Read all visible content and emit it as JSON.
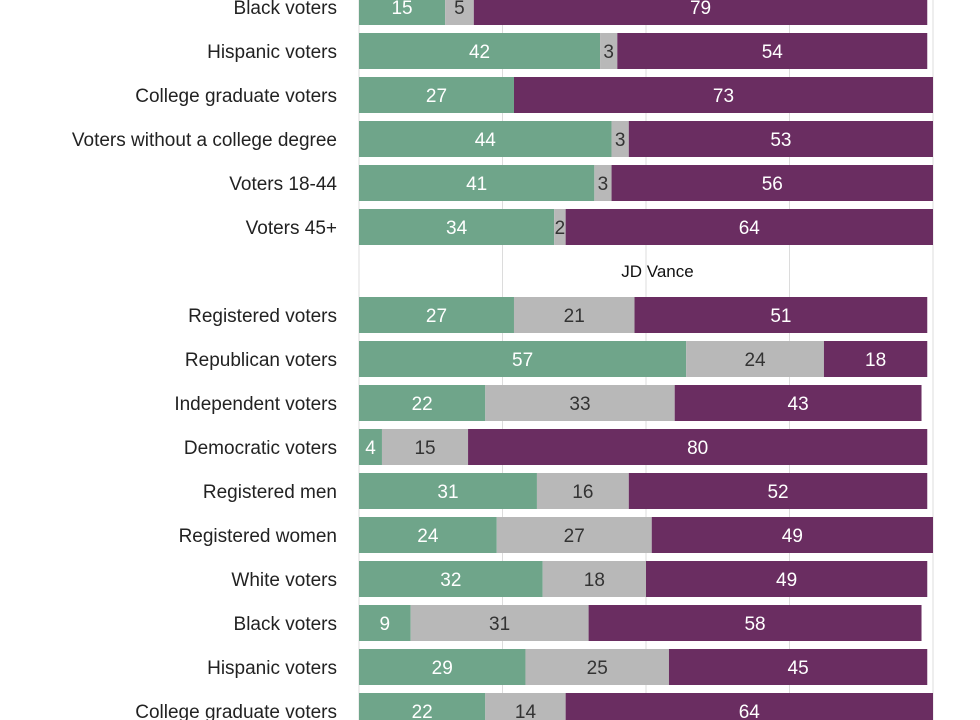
{
  "chart_data": {
    "type": "bar",
    "orientation": "horizontal",
    "stacked": true,
    "grid": true,
    "xlim": [
      0,
      100
    ],
    "colors": [
      "#6fa58a",
      "#b8b8b8",
      "#6a2d61"
    ],
    "groups": [
      {
        "title": "",
        "categories": [
          "Black voters",
          "Hispanic voters",
          "College graduate voters",
          "Voters without a college degree",
          "Voters 18-44",
          "Voters  45+"
        ],
        "series": [
          {
            "values": [
              15,
              42,
              27,
              44,
              41,
              34
            ]
          },
          {
            "values": [
              5,
              3,
              null,
              3,
              3,
              2
            ]
          },
          {
            "values": [
              79,
              54,
              73,
              53,
              56,
              64
            ]
          }
        ]
      },
      {
        "title": "JD Vance",
        "categories": [
          "Registered voters",
          "Republican voters",
          "Independent voters",
          "Democratic voters",
          "Registered men",
          "Registered women",
          "White voters",
          "Black voters",
          "Hispanic voters",
          "College graduate voters"
        ],
        "series": [
          {
            "values": [
              27,
              57,
              22,
              4,
              31,
              24,
              32,
              9,
              29,
              22
            ]
          },
          {
            "values": [
              21,
              24,
              33,
              15,
              16,
              27,
              18,
              31,
              25,
              14
            ]
          },
          {
            "values": [
              51,
              18,
              43,
              80,
              52,
              49,
              49,
              58,
              45,
              64
            ]
          }
        ]
      }
    ]
  }
}
